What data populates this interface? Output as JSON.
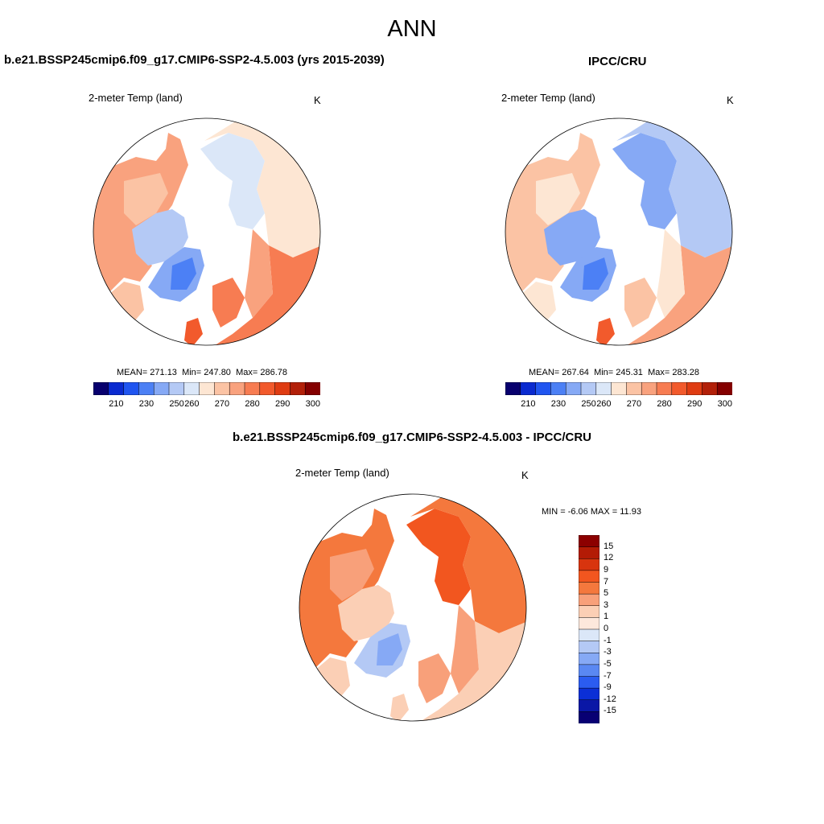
{
  "title": "ANN",
  "panels": [
    {
      "title": "b.e21.BSSP245cmip6.f09_g17.CMIP6-SSP2-4.5.003 (yrs 2015-2039)",
      "variable": "2-meter Temp (land)",
      "units": "K",
      "stats": {
        "mean_label": "MEAN=",
        "mean": "271.13",
        "min_label": "Min=",
        "min": "247.80",
        "max_label": "Max=",
        "max": "286.78"
      },
      "colorbar_ticks": [
        "210",
        "230",
        "250",
        "260",
        "270",
        "280",
        "290",
        "300"
      ]
    },
    {
      "title": "IPCC/CRU",
      "variable": "2-meter Temp (land)",
      "units": "K",
      "stats": {
        "mean_label": "MEAN=",
        "mean": "267.64",
        "min_label": "Min=",
        "min": "245.31",
        "max_label": "Max=",
        "max": "283.28"
      },
      "colorbar_ticks": [
        "210",
        "230",
        "250",
        "260",
        "270",
        "280",
        "290",
        "300"
      ]
    },
    {
      "title": "b.e21.BSSP245cmip6.f09_g17.CMIP6-SSP2-4.5.003 - IPCC/CRU",
      "variable": "2-meter Temp (land)",
      "units": "K",
      "stats": {
        "min_label": "MIN =",
        "min": "-6.06",
        "max_label": "MAX =",
        "max": "11.93"
      },
      "colorbar_ticks": [
        "15",
        "12",
        "9",
        "7",
        "5",
        "3",
        "1",
        "0",
        "-1",
        "-3",
        "-5",
        "-7",
        "-9",
        "-12",
        "-15"
      ]
    }
  ],
  "colors": {
    "abs_scale": [
      "#08006e",
      "#0a2ad0",
      "#2055f0",
      "#4c80f5",
      "#86a9f5",
      "#b4c9f5",
      "#dbe7f8",
      "#fde6d3",
      "#fbc3a4",
      "#f9a27e",
      "#f77c52",
      "#f25a2c",
      "#df3c12",
      "#b22009",
      "#840000"
    ],
    "diff_scale": [
      "#8c0000",
      "#b31b05",
      "#d8340e",
      "#f2561f",
      "#f4783d",
      "#f8a07a",
      "#fbcfb5",
      "#fde8dc",
      "#dbe7f8",
      "#b4c9f5",
      "#86a9f5",
      "#5a88f2",
      "#2b5cf0",
      "#0b2fd6",
      "#0a17a6",
      "#080073"
    ],
    "map_outline": "#000000"
  }
}
